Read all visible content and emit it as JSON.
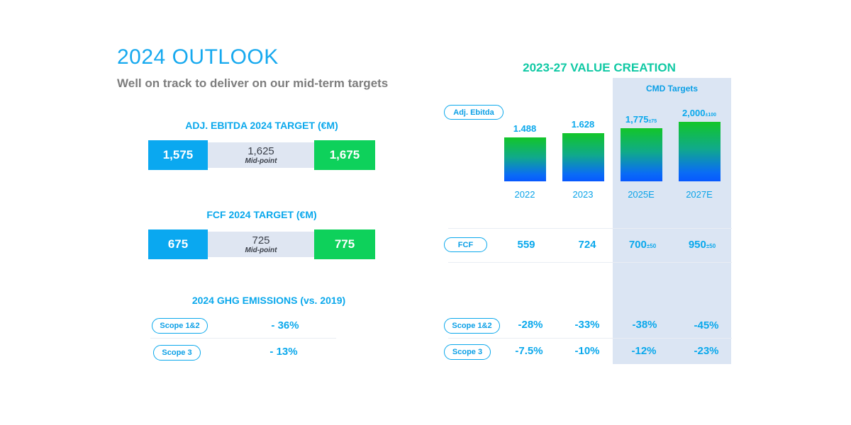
{
  "header": {
    "title": "2024 OUTLOOK",
    "subtitle": "Well on track to deliver on our mid-term targets"
  },
  "left": {
    "ebitda": {
      "title": "ADJ. EBITDA 2024 TARGET (€M)",
      "low": "1,575",
      "mid": "1,625",
      "mid_label": "Mid-point",
      "high": "1,675"
    },
    "fcf": {
      "title": "FCF 2024 TARGET (€M)",
      "low": "675",
      "mid": "725",
      "mid_label": "Mid-point",
      "high": "775"
    },
    "ghg": {
      "title": "2024 GHG EMISSIONS (vs. 2019)",
      "rows": [
        {
          "label": "Scope 1&2",
          "value": "- 36%"
        },
        {
          "label": "Scope 3",
          "value": "- 13%"
        }
      ]
    }
  },
  "right": {
    "title": "2023-27 VALUE CREATION",
    "cmd_label": "CMD Targets",
    "adj_ebitda_label": "Adj. Ebitda",
    "fcf": {
      "label": "FCF",
      "values": [
        {
          "main": "559",
          "sub": ""
        },
        {
          "main": "724",
          "sub": ""
        },
        {
          "main": "700",
          "sub": "±50"
        },
        {
          "main": "950",
          "sub": "±50"
        }
      ]
    },
    "scope12": {
      "label": "Scope 1&2",
      "values": [
        "-28%",
        "-33%",
        "-38%",
        "-45%"
      ]
    },
    "scope3": {
      "label": "Scope 3",
      "values": [
        "-7.5%",
        "-10%",
        "-12%",
        "-23%"
      ]
    }
  },
  "chart_data": {
    "type": "bar",
    "categories": [
      "2022",
      "2023",
      "2025E",
      "2027E"
    ],
    "values": [
      1488,
      1628,
      1775,
      2000
    ],
    "value_labels": [
      {
        "main": "1.488",
        "sub": ""
      },
      {
        "main": "1.628",
        "sub": ""
      },
      {
        "main": "1,775",
        "sub": "±75"
      },
      {
        "main": "2,000",
        "sub": "±100"
      }
    ],
    "ylim": [
      0,
      2000
    ],
    "grid": false,
    "colors": {
      "bar_top": "#12c629",
      "bar_bottom": "#0758ff"
    }
  }
}
